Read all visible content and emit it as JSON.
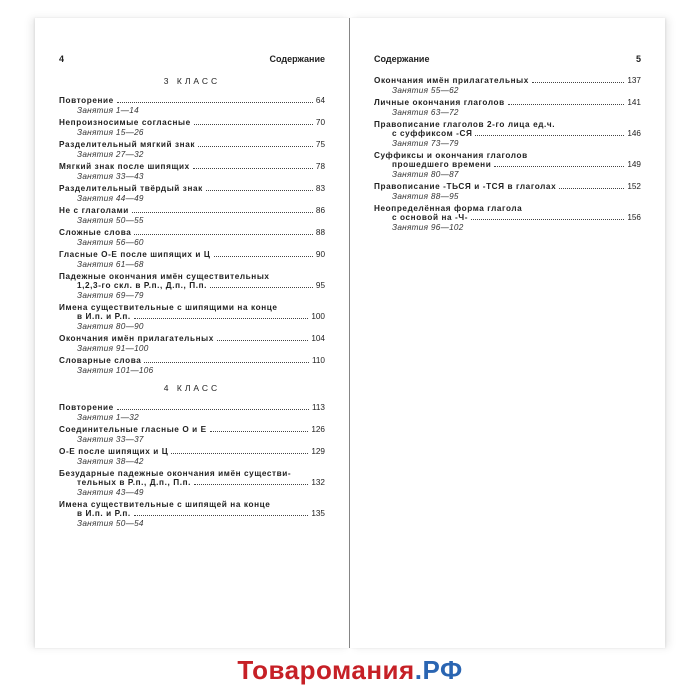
{
  "colors": {
    "wm_red": "#c62026",
    "wm_blue": "#2a65b2",
    "text": "#222",
    "dot": "#444"
  },
  "left": {
    "hdr_num": "4",
    "hdr_title": "Содержание",
    "sections": [
      {
        "heading": "3  КЛАСС",
        "entries": [
          {
            "lines": [
              "Повторение"
            ],
            "page": "64",
            "sub": "Занятия 1—14"
          },
          {
            "lines": [
              "Непроизносимые согласные"
            ],
            "page": "70",
            "sub": "Занятия 15—26"
          },
          {
            "lines": [
              "Разделительный мягкий знак"
            ],
            "page": "75",
            "sub": "Занятия 27—32"
          },
          {
            "lines": [
              "Мягкий знак после шипящих"
            ],
            "page": "78",
            "sub": "Занятия 33—43"
          },
          {
            "lines": [
              "Разделительный твёрдый знак"
            ],
            "page": "83",
            "sub": "Занятия 44—49"
          },
          {
            "lines": [
              "Не с глаголами"
            ],
            "page": "86",
            "sub": "Занятия 50—55"
          },
          {
            "lines": [
              "Сложные слова"
            ],
            "page": "88",
            "sub": "Занятия 56—60"
          },
          {
            "lines": [
              "Гласные О-Е после шипящих и Ц"
            ],
            "page": "90",
            "sub": "Занятия 61—68"
          },
          {
            "lines": [
              "Падежные окончания имён существительных",
              "1,2,3-го скл. в Р.п., Д.п., П.п."
            ],
            "page": "95",
            "sub": "Занятия 69—79"
          },
          {
            "lines": [
              "Имена существительные с шипящими на конце",
              "в И.п. и Р.п."
            ],
            "page": "100",
            "sub": "Занятия 80—90"
          },
          {
            "lines": [
              "Окончания имён прилагательных"
            ],
            "page": "104",
            "sub": "Занятия 91—100"
          },
          {
            "lines": [
              "Словарные слова"
            ],
            "page": "110",
            "sub": "Занятия 101—106"
          }
        ]
      },
      {
        "heading": "4  КЛАСС",
        "entries": [
          {
            "lines": [
              "Повторение"
            ],
            "page": "113",
            "sub": "Занятия 1—32"
          },
          {
            "lines": [
              "Соединительные гласные О и Е"
            ],
            "page": "126",
            "sub": "Занятия 33—37"
          },
          {
            "lines": [
              "О-Е после шипящих и Ц"
            ],
            "page": "129",
            "sub": "Занятия 38—42"
          },
          {
            "lines": [
              "Безударные падежные окончания имён существи-",
              "тельных в Р.п., Д.п., П.п."
            ],
            "page": "132",
            "sub": "Занятия 43—49"
          },
          {
            "lines": [
              "Имена существительные с шипящей на конце",
              "в И.п. и Р.п."
            ],
            "page": "135",
            "sub": "Занятия 50—54"
          }
        ]
      }
    ]
  },
  "right": {
    "hdr_num": "5",
    "hdr_title": "Содержание",
    "sections": [
      {
        "heading": "",
        "entries": [
          {
            "lines": [
              "Окончания имён прилагательных"
            ],
            "page": "137",
            "sub": "Занятия 55—62"
          },
          {
            "lines": [
              "Личные окончания глаголов"
            ],
            "page": "141",
            "sub": "Занятия 63—72"
          },
          {
            "lines": [
              "Правописание глаголов 2-го лица ед.ч.",
              "с суффиксом -СЯ"
            ],
            "page": "146",
            "sub": "Занятия 73—79"
          },
          {
            "lines": [
              "Суффиксы и окончания глаголов",
              "прошедшего времени"
            ],
            "page": "149",
            "sub": "Занятия 80—87"
          },
          {
            "lines": [
              "Правописание -ТЬСЯ и -ТСЯ в глаголах"
            ],
            "page": "152",
            "sub": "Занятия 88—95"
          },
          {
            "lines": [
              "Неопределённая форма глагола",
              "с основой на -Ч-"
            ],
            "page": "156",
            "sub": "Занятия 96—102"
          }
        ]
      }
    ]
  },
  "watermark": {
    "a": "Товаромания",
    "b": ".РФ"
  }
}
